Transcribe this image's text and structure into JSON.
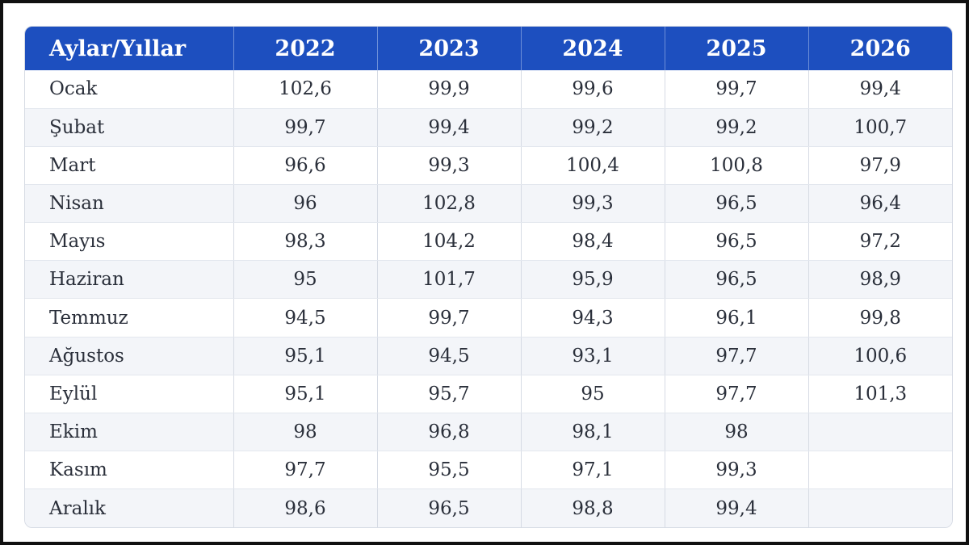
{
  "table": {
    "header": {
      "month_label": "Aylar/Yıllar",
      "years": [
        "2022",
        "2023",
        "2024",
        "2025",
        "2026"
      ]
    },
    "rows": [
      {
        "month": "Ocak",
        "values": [
          "102,6",
          "99,9",
          "99,6",
          "99,7",
          "99,4"
        ]
      },
      {
        "month": "Şubat",
        "values": [
          "99,7",
          "99,4",
          "99,2",
          "99,2",
          "100,7"
        ]
      },
      {
        "month": "Mart",
        "values": [
          "96,6",
          "99,3",
          "100,4",
          "100,8",
          "97,9"
        ]
      },
      {
        "month": "Nisan",
        "values": [
          "96",
          "102,8",
          "99,3",
          "96,5",
          "96,4"
        ]
      },
      {
        "month": "Mayıs",
        "values": [
          "98,3",
          "104,2",
          "98,4",
          "96,5",
          "97,2"
        ]
      },
      {
        "month": "Haziran",
        "values": [
          "95",
          "101,7",
          "95,9",
          "96,5",
          "98,9"
        ]
      },
      {
        "month": "Temmuz",
        "values": [
          "94,5",
          "99,7",
          "94,3",
          "96,1",
          "99,8"
        ]
      },
      {
        "month": "Ağustos",
        "values": [
          "95,1",
          "94,5",
          "93,1",
          "97,7",
          "100,6"
        ]
      },
      {
        "month": "Eylül",
        "values": [
          "95,1",
          "95,7",
          "95",
          "97,7",
          "101,3"
        ]
      },
      {
        "month": "Ekim",
        "values": [
          "98",
          "96,8",
          "98,1",
          "98",
          ""
        ]
      },
      {
        "month": "Kasım",
        "values": [
          "97,7",
          "95,5",
          "97,1",
          "99,3",
          ""
        ]
      },
      {
        "month": "Aralık",
        "values": [
          "98,6",
          "96,5",
          "98,8",
          "99,4",
          ""
        ]
      }
    ]
  },
  "colors": {
    "header_background": "#1d4fbf",
    "header_text": "#ffffff",
    "row_stripe": "#f3f5f9",
    "cell_text": "#2a2f3a"
  }
}
